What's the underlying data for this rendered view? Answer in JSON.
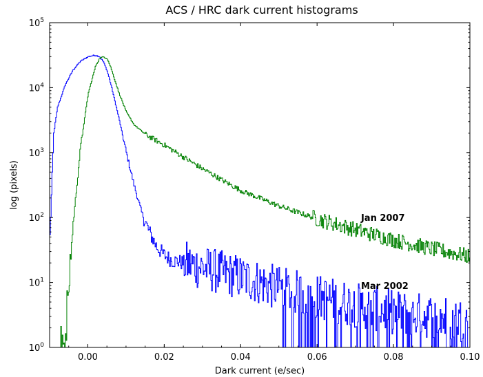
{
  "chart_data": {
    "type": "line",
    "title": "ACS / HRC dark current histograms",
    "xlabel": "Dark current (e/sec)",
    "ylabel": "log (pixels)",
    "xlim": [
      -0.01,
      0.1
    ],
    "ylim": [
      1,
      100000
    ],
    "yscale": "log",
    "grid": false,
    "legend": "none",
    "x_ticks": [
      {
        "value": 0.0,
        "label": "0.00"
      },
      {
        "value": 0.02,
        "label": "0.02"
      },
      {
        "value": 0.04,
        "label": "0.04"
      },
      {
        "value": 0.06,
        "label": "0.06"
      },
      {
        "value": 0.08,
        "label": "0.08"
      },
      {
        "value": 0.1,
        "label": "0.10"
      }
    ],
    "y_ticks": [
      {
        "value": 1,
        "base": "10",
        "exp": "0"
      },
      {
        "value": 10,
        "base": "10",
        "exp": "1"
      },
      {
        "value": 100,
        "base": "10",
        "exp": "2"
      },
      {
        "value": 1000,
        "base": "10",
        "exp": "3"
      },
      {
        "value": 10000,
        "base": "10",
        "exp": "4"
      },
      {
        "value": 100000,
        "base": "10",
        "exp": "5"
      }
    ],
    "series": [
      {
        "name": "Mar 2002",
        "color": "#0000ff",
        "x": [
          -0.01,
          -0.009,
          -0.008,
          -0.006,
          -0.004,
          -0.002,
          0.0,
          0.001,
          0.002,
          0.003,
          0.004,
          0.005,
          0.006,
          0.008,
          0.01,
          0.012,
          0.014,
          0.016,
          0.018,
          0.02,
          0.022,
          0.025,
          0.03,
          0.035,
          0.04,
          0.045,
          0.05,
          0.06,
          0.07,
          0.08,
          0.09,
          0.1
        ],
        "y": [
          50,
          2000,
          5000,
          11000,
          18500,
          25500,
          30000,
          31000,
          31500,
          30000,
          25000,
          18000,
          11000,
          3500,
          1000,
          320,
          120,
          60,
          35,
          26,
          22,
          20,
          17,
          14,
          12,
          10,
          8,
          6,
          4.5,
          3.5,
          3,
          2.5
        ]
      },
      {
        "name": "Jan 2007",
        "color": "#008000",
        "x": [
          -0.0075,
          -0.006,
          -0.004,
          -0.002,
          0.0,
          0.002,
          0.003,
          0.004,
          0.005,
          0.006,
          0.008,
          0.01,
          0.012,
          0.015,
          0.02,
          0.025,
          0.03,
          0.035,
          0.04,
          0.05,
          0.06,
          0.07,
          0.08,
          0.09,
          0.1
        ],
        "y": [
          1,
          1.5,
          70,
          1200,
          8000,
          22000,
          28000,
          30000,
          28000,
          20000,
          8500,
          4200,
          2700,
          1900,
          1300,
          850,
          560,
          380,
          260,
          150,
          95,
          65,
          45,
          33,
          25
        ]
      }
    ],
    "annotations": [
      {
        "text": "Jan 2007",
        "x": 0.0715,
        "y": 100
      },
      {
        "text": "Mar 2002",
        "x": 0.0715,
        "y": 9
      }
    ]
  }
}
